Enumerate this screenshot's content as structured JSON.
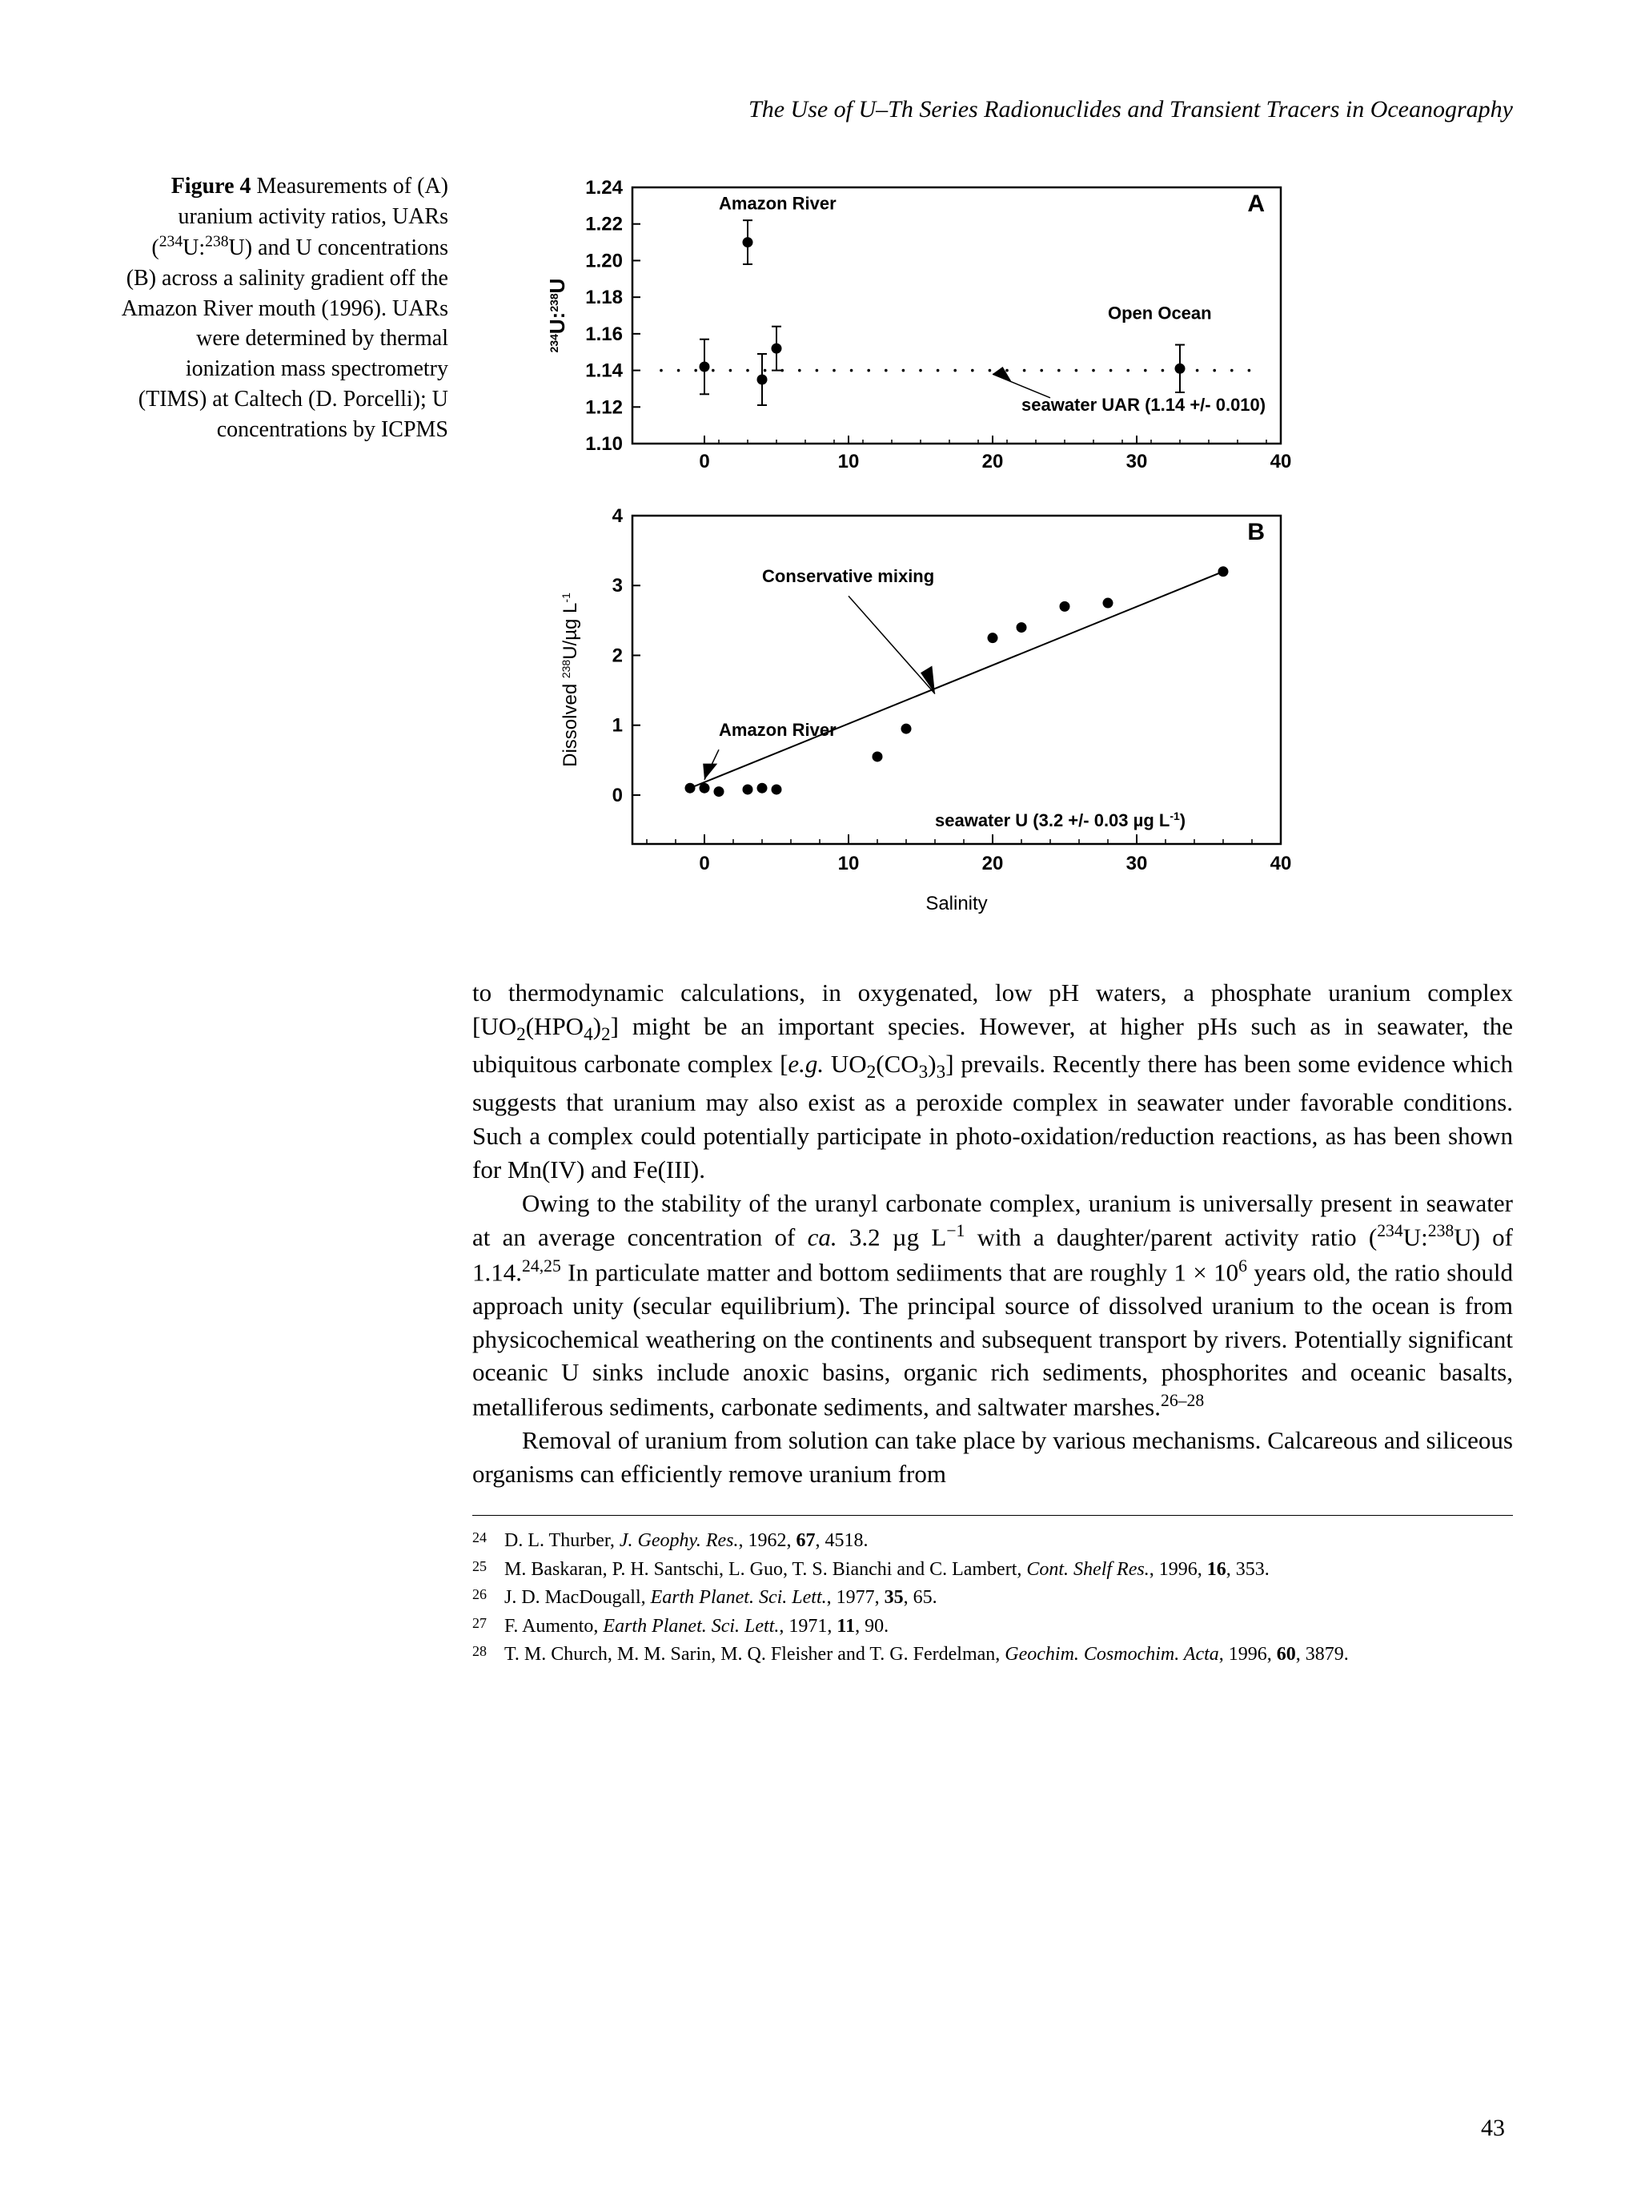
{
  "running_head": "The Use of U–Th Series Radionuclides and Transient Tracers in Oceanography",
  "figure": {
    "label": "Figure 4",
    "caption_html": "Measurements of (A) uranium activity ratios, UARs (<sup>234</sup>U:<sup>238</sup>U) and U concentrations (B) across a salinity gradient off the Amazon River mouth (1996). UARs were determined by thermal ionization mass spectrometry (TIMS) at Caltech (D. Porcelli); U concentrations by ICPMS",
    "panelA": {
      "type": "scatter_err",
      "panel_label": "A",
      "xlim": [
        -5,
        40
      ],
      "ylim": [
        1.1,
        1.24
      ],
      "ytick": [
        1.1,
        1.12,
        1.14,
        1.16,
        1.18,
        1.2,
        1.22,
        1.24
      ],
      "xtick": [
        0,
        10,
        20,
        30,
        40
      ],
      "ylabel_html": "<tspan font-size='14' baseline-shift='super'>234</tspan>U:<tspan font-size='14' baseline-shift='super'>238</tspan>U",
      "points": [
        {
          "x": 0,
          "y": 1.142,
          "err": 0.015
        },
        {
          "x": 3,
          "y": 1.21,
          "err": 0.012
        },
        {
          "x": 4,
          "y": 1.135,
          "err": 0.014
        },
        {
          "x": 5,
          "y": 1.152,
          "err": 0.012
        },
        {
          "x": 33,
          "y": 1.141,
          "err": 0.013
        }
      ],
      "ref_line_y": 1.14,
      "ref_line_label": "seawater UAR (1.14 +/- 0.010)",
      "annot_amazon": "Amazon River",
      "annot_open": "Open Ocean",
      "marker_color": "#000000",
      "marker_radius": 6.5,
      "bg": "#ffffff",
      "axis_color": "#000000",
      "font": "Arial"
    },
    "panelB": {
      "type": "scatter_line",
      "panel_label": "B",
      "xlim": [
        -5,
        40
      ],
      "ylim": [
        -0.7,
        4
      ],
      "ytick": [
        0,
        1,
        2,
        3,
        4
      ],
      "xtick": [
        0,
        10,
        20,
        30,
        40
      ],
      "xlabel": "Salinity",
      "ylabel_html": "Dissolved <tspan font-size='14' baseline-shift='super'>238</tspan>U/µg L<tspan font-size='14' baseline-shift='super'>-1</tspan>",
      "points": [
        {
          "x": -1,
          "y": 0.1
        },
        {
          "x": 0,
          "y": 0.1
        },
        {
          "x": 1,
          "y": 0.05
        },
        {
          "x": 3,
          "y": 0.08
        },
        {
          "x": 4,
          "y": 0.1
        },
        {
          "x": 5,
          "y": 0.08
        },
        {
          "x": 12,
          "y": 0.55
        },
        {
          "x": 14,
          "y": 0.95
        },
        {
          "x": 20,
          "y": 2.25
        },
        {
          "x": 22,
          "y": 2.4
        },
        {
          "x": 25,
          "y": 2.7
        },
        {
          "x": 28,
          "y": 2.75
        },
        {
          "x": 36,
          "y": 3.2
        }
      ],
      "mix_line": {
        "x1": -1,
        "y1": 0.1,
        "x2": 36,
        "y2": 3.2
      },
      "annot_mix": "Conservative mixing",
      "annot_amazon": "Amazon River",
      "seawater_label_html": "seawater U (3.2 +/- 0.03 µg L<tspan font-size='14' baseline-shift='super'>-1</tspan>)",
      "marker_color": "#000000",
      "marker_radius": 6.5,
      "bg": "#ffffff",
      "axis_color": "#000000",
      "font": "Arial"
    }
  },
  "para1_html": "to thermodynamic calculations, in oxygenated, low pH waters, a phosphate uranium complex [UO<sub>2</sub>(HPO<sub>4</sub>)<sub>2</sub>] might be an important species. However, at higher pHs such as in seawater, the ubiquitous carbonate complex [<span class='italic'>e.g.</span> UO<sub>2</sub>(CO<sub>3</sub>)<sub>3</sub>] prevails. Recently there has been some evidence which suggests that uranium may also exist as a peroxide complex in seawater under favorable conditions. Such a complex could potentially participate in photo-oxidation/reduction reactions, as has been shown for Mn(IV) and Fe(III).",
  "para2_html": "Owing to the stability of the uranyl carbonate complex, uranium is universally present in seawater at an average concentration of <span class='italic'>ca.</span> 3.2 µg L<sup>−1</sup> with a daughter/parent activity ratio (<sup>234</sup>U:<sup>238</sup>U) of 1.14.<sup>24,25</sup> In particulate matter and bottom sediiments that are roughly 1 × 10<sup>6</sup> years old, the ratio should approach unity (secular equilibrium). The principal source of dissolved uranium to the ocean is from physicochemical weathering on the continents and subsequent transport by rivers. Potentially significant oceanic U sinks include anoxic basins, organic rich sediments, phosphorites and oceanic basalts, metalliferous sediments, carbonate sediments, and saltwater marshes.<sup>26–28</sup>",
  "para3_html": "Removal of uranium from solution can take place by various mechanisms. Calcareous and siliceous organisms can efficiently remove uranium from",
  "refs": [
    {
      "n": "24",
      "html": "D. L. Thurber, <span class='italic'>J. Geophy. Res.</span>, 1962, <b>67</b>, 4518."
    },
    {
      "n": "25",
      "html": "M. Baskaran, P. H. Santschi, L. Guo, T. S. Bianchi and C. Lambert, <span class='italic'>Cont. Shelf Res.</span>, 1996, <b>16</b>, 353."
    },
    {
      "n": "26",
      "html": "J. D. MacDougall, <span class='italic'>Earth Planet. Sci. Lett.</span>, 1977, <b>35</b>, 65."
    },
    {
      "n": "27",
      "html": "F. Aumento, <span class='italic'>Earth Planet. Sci. Lett.</span>, 1971, <b>11</b>, 90."
    },
    {
      "n": "28",
      "html": "T. M. Church, M. M. Sarin, M. Q. Fleisher and T. G. Ferdelman, <span class='italic'>Geochim. Cosmochim. Acta</span>, 1996, <b>60</b>, 3879."
    }
  ],
  "page_number": "43"
}
